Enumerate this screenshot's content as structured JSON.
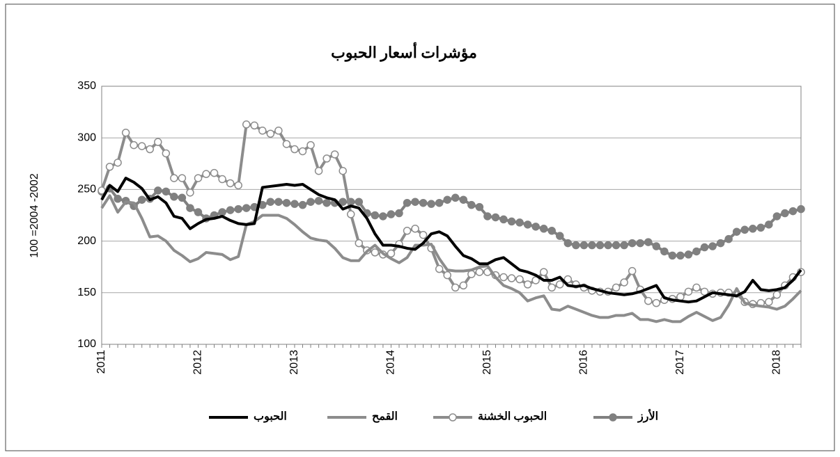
{
  "chart_data": {
    "type": "line",
    "title": "مؤشرات أسعار الحبوب",
    "y_label": "100 =2004 -2002",
    "categories": [
      "2011",
      null,
      null,
      null,
      null,
      null,
      null,
      null,
      null,
      null,
      null,
      null,
      "2012",
      null,
      null,
      null,
      null,
      null,
      null,
      null,
      null,
      null,
      null,
      null,
      "2013",
      null,
      null,
      null,
      null,
      null,
      null,
      null,
      null,
      null,
      null,
      null,
      "2014",
      null,
      null,
      null,
      null,
      null,
      null,
      null,
      null,
      null,
      null,
      null,
      "2015",
      null,
      null,
      null,
      null,
      null,
      null,
      null,
      null,
      null,
      null,
      null,
      "2016",
      null,
      null,
      null,
      null,
      null,
      null,
      null,
      null,
      null,
      null,
      null,
      "2017",
      null,
      null,
      null,
      null,
      null,
      null,
      null,
      null,
      null,
      null,
      null,
      "2018",
      null,
      null,
      null
    ],
    "series": [
      {
        "name": "الحبوب",
        "color": "#000000",
        "marker": "none",
        "values": [
          240,
          254,
          248,
          261,
          257,
          251,
          240,
          243,
          237,
          224,
          222,
          212,
          217,
          221,
          222,
          224,
          220,
          217,
          216,
          217,
          252,
          253,
          254,
          255,
          254,
          255,
          250,
          245,
          242,
          240,
          231,
          234,
          232,
          222,
          207,
          196,
          196,
          195,
          193,
          192,
          198,
          207,
          209,
          205,
          195,
          186,
          183,
          178,
          178,
          182,
          184,
          178,
          172,
          170,
          167,
          162,
          162,
          165,
          157,
          156,
          157,
          154,
          152,
          150,
          149,
          148,
          149,
          151,
          154,
          157,
          145,
          143,
          142,
          141,
          142,
          146,
          150,
          149,
          148,
          147,
          151,
          162,
          153,
          152,
          153,
          155,
          162,
          172
        ]
      },
      {
        "name": "القمح",
        "color": "#8c8c8c",
        "marker": "none",
        "values": [
          232,
          244,
          228,
          238,
          237,
          222,
          204,
          205,
          200,
          191,
          186,
          180,
          183,
          189,
          188,
          187,
          182,
          185,
          216,
          219,
          225,
          225,
          225,
          222,
          216,
          209,
          203,
          201,
          200,
          193,
          184,
          181,
          181,
          190,
          196,
          188,
          183,
          179,
          184,
          196,
          196,
          197,
          183,
          172,
          171,
          171,
          172,
          175,
          176,
          165,
          157,
          154,
          150,
          142,
          145,
          147,
          134,
          133,
          137,
          134,
          131,
          128,
          126,
          126,
          128,
          128,
          130,
          124,
          124,
          122,
          124,
          122,
          122,
          127,
          131,
          127,
          123,
          126,
          138,
          154,
          140,
          138,
          137,
          136,
          134,
          137,
          144,
          152
        ]
      },
      {
        "name": "الحبوب الخشنة",
        "color": "#8c8c8c",
        "marker": "hollow",
        "values": [
          249,
          272,
          276,
          305,
          293,
          292,
          289,
          296,
          285,
          261,
          261,
          247,
          261,
          265,
          266,
          260,
          256,
          254,
          313,
          312,
          307,
          304,
          307,
          294,
          289,
          287,
          293,
          268,
          280,
          284,
          268,
          226,
          198,
          191,
          189,
          187,
          188,
          197,
          210,
          212,
          206,
          193,
          173,
          167,
          155,
          157,
          168,
          170,
          170,
          167,
          165,
          164,
          163,
          158,
          162,
          170,
          155,
          158,
          163,
          158,
          155,
          152,
          151,
          151,
          155,
          160,
          171,
          153,
          142,
          140,
          143,
          144,
          146,
          151,
          155,
          151,
          149,
          150,
          150,
          149,
          141,
          139,
          140,
          141,
          148,
          157,
          165,
          170
        ]
      },
      {
        "name": "الأرز",
        "color": "#808080",
        "marker": "filled",
        "values": [
          248,
          251,
          241,
          239,
          234,
          240,
          241,
          249,
          248,
          243,
          242,
          232,
          228,
          222,
          225,
          228,
          230,
          231,
          232,
          233,
          235,
          238,
          238,
          237,
          236,
          235,
          238,
          239,
          237,
          237,
          238,
          238,
          238,
          227,
          225,
          224,
          226,
          227,
          237,
          238,
          237,
          236,
          237,
          240,
          242,
          240,
          235,
          233,
          224,
          223,
          221,
          219,
          218,
          216,
          214,
          212,
          210,
          205,
          198,
          196,
          196,
          196,
          196,
          196,
          196,
          196,
          198,
          198,
          199,
          195,
          190,
          186,
          186,
          187,
          190,
          194,
          195,
          198,
          202,
          209,
          211,
          212,
          213,
          216,
          224,
          227,
          229,
          231
        ]
      }
    ],
    "ylim": [
      100,
      350
    ],
    "yticks": [
      100,
      150,
      200,
      250,
      300,
      350
    ],
    "grid": true,
    "legend": "bottom"
  }
}
